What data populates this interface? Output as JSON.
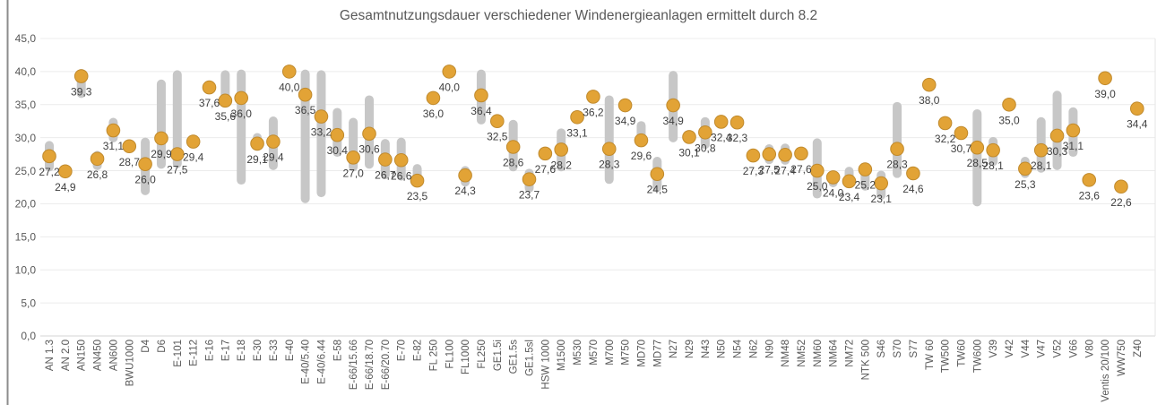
{
  "colors": {
    "dot_fill": "#E2A336",
    "dot_stroke": "#C08A2D",
    "range_bar": "#C7C7C7",
    "gridline": "#ECECEC",
    "axis_line": "#D5D5D5",
    "plot_right_border": "#E6E6E6",
    "frame_line": "#8C8C8C",
    "title_text": "#595959",
    "tick_text": "#595959",
    "data_label_text": "#404040"
  },
  "chart_data": {
    "type": "scatter",
    "title": "Gesamtnutzungsdauer verschiedener Windenergieanlagen ermittelt durch 8.2",
    "xlabel": "",
    "ylabel": "",
    "ylim": [
      0,
      45
    ],
    "ytick_step": 5,
    "ytick_labels": [
      "45,0",
      "40,0",
      "35,0",
      "30,0",
      "25,0",
      "20,0",
      "15,0",
      "10,0",
      "5,0",
      "0,0"
    ],
    "grid": true,
    "legend": "none",
    "decimal_separator": ",",
    "marker": "circle",
    "range_bars_note": "gray rounded vertical bars behind dots give min-max range per category; null = no bar",
    "categories": [
      "AN 1.3",
      "AN 2.0",
      "AN150",
      "AN450",
      "AN600",
      "BWU1000",
      "D4",
      "D6",
      "E-101",
      "E-112",
      "E-16",
      "E-17",
      "E-18",
      "E-30",
      "E-33",
      "E-40",
      "E-40/5.40",
      "E-40/6.44",
      "E-58",
      "E-66/15.66",
      "E-66/18.70",
      "E-66/20.70",
      "E-70",
      "E-82",
      "FL 250",
      "FL100",
      "FL1000",
      "FL250",
      "GE1.5i",
      "GE1.5s",
      "GE1.5sl",
      "HSW 1000",
      "M1500",
      "M530",
      "M570",
      "M700",
      "M750",
      "MD70",
      "MD77",
      "N27",
      "N29",
      "N43",
      "N50",
      "N54",
      "N62",
      "N90",
      "NM48",
      "NM52",
      "NM60",
      "NM64",
      "NM72",
      "NTK 500",
      "S46",
      "S70",
      "S77",
      "TW 60",
      "TW500",
      "TW60",
      "TW600",
      "V39",
      "V42",
      "V44",
      "V47",
      "V52",
      "V66",
      "V80",
      "Ventis 20/100",
      "WW750",
      "Z40"
    ],
    "values": [
      27.2,
      24.9,
      39.3,
      26.8,
      31.1,
      28.7,
      26.0,
      29.9,
      27.5,
      29.4,
      37.6,
      35.6,
      36.0,
      29.1,
      29.4,
      40.0,
      36.5,
      33.2,
      30.4,
      27.0,
      30.6,
      26.7,
      26.6,
      23.5,
      36.0,
      40.0,
      24.3,
      36.4,
      32.5,
      28.6,
      23.7,
      27.6,
      28.2,
      33.1,
      36.2,
      28.3,
      34.9,
      29.6,
      24.5,
      34.9,
      30.1,
      30.8,
      32.4,
      32.3,
      27.3,
      27.5,
      27.4,
      27.6,
      25.0,
      24.0,
      23.4,
      25.2,
      23.1,
      28.3,
      24.6,
      38.0,
      32.2,
      30.7,
      28.5,
      28.1,
      35.0,
      25.3,
      28.1,
      30.3,
      31.1,
      23.6,
      39.0,
      22.6,
      34.4
    ],
    "value_labels": [
      "27,2",
      "24,9",
      "39,3",
      "26,8",
      "31,1",
      "28,7",
      "26,0",
      "29,9",
      "27,5",
      "29,4",
      "37,6",
      "35,6",
      "36,0",
      "29,1",
      "29,4",
      "40,0",
      "36,5",
      "33,2",
      "30,4",
      "27,0",
      "30,6",
      "26,7",
      "26,6",
      "23,5",
      "36,0",
      "40,0",
      "24,3",
      "36,4",
      "32,5",
      "28,6",
      "23,7",
      "27,6",
      "28,2",
      "33,1",
      "36,2",
      "28,3",
      "34,9",
      "29,6",
      "24,5",
      "34,9",
      "30,1",
      "30,8",
      "32,4",
      "32,3",
      "27,3",
      "27,5",
      "27,4",
      "27,6",
      "25,0",
      "24,0",
      "23,4",
      "25,2",
      "23,1",
      "28,3",
      "24,6",
      "38,0",
      "32,2",
      "30,7",
      "28,5",
      "28,1",
      "35,0",
      "25,3",
      "28,1",
      "30,3",
      "31,1",
      "23,6",
      "39,0",
      "22,6",
      "34,4"
    ],
    "ranges": [
      [
        24.9,
        29.5
      ],
      null,
      [
        36.0,
        40.4
      ],
      [
        25.1,
        28.0
      ],
      [
        29.3,
        33.0
      ],
      null,
      [
        21.3,
        30.0
      ],
      [
        25.3,
        38.8
      ],
      [
        25.4,
        40.2
      ],
      null,
      null,
      [
        35.0,
        40.2
      ],
      [
        22.9,
        40.3
      ],
      [
        28.0,
        30.7
      ],
      [
        25.1,
        33.2
      ],
      null,
      [
        20.1,
        40.3
      ],
      [
        21.0,
        40.2
      ],
      [
        27.1,
        34.5
      ],
      [
        24.9,
        33.0
      ],
      [
        25.3,
        36.4
      ],
      [
        23.7,
        29.8
      ],
      [
        23.5,
        30.0
      ],
      [
        22.6,
        26.0
      ],
      null,
      null,
      [
        22.6,
        25.7
      ],
      [
        32.0,
        40.3
      ],
      null,
      [
        24.9,
        32.7
      ],
      [
        21.7,
        25.3
      ],
      null,
      [
        24.9,
        31.4
      ],
      null,
      null,
      [
        23.0,
        36.4
      ],
      null,
      [
        29.2,
        32.5
      ],
      [
        21.8,
        27.1
      ],
      [
        29.3,
        40.1
      ],
      null,
      [
        28.3,
        33.1
      ],
      null,
      null,
      null,
      [
        26.0,
        29.0
      ],
      [
        25.9,
        29.1
      ],
      null,
      [
        20.8,
        29.9
      ],
      [
        22.5,
        25.0
      ],
      [
        22.9,
        25.6
      ],
      [
        22.0,
        25.4
      ],
      [
        20.6,
        25.0
      ],
      [
        23.9,
        35.4
      ],
      null,
      null,
      null,
      null,
      [
        19.6,
        34.3
      ],
      [
        25.7,
        30.1
      ],
      null,
      [
        23.9,
        27.1
      ],
      [
        24.7,
        33.1
      ],
      [
        25.1,
        37.1
      ],
      [
        27.1,
        34.6
      ],
      null,
      null,
      null,
      null
    ]
  }
}
